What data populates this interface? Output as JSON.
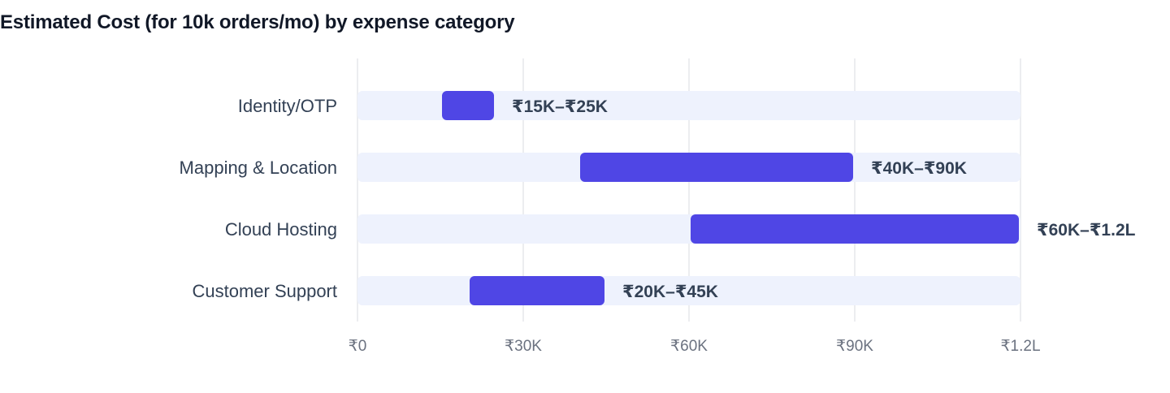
{
  "chart_data": {
    "type": "bar",
    "orientation": "horizontal",
    "subtype": "range",
    "title": "Estimated Cost (for 10k orders/mo) by expense category",
    "xlabel": "",
    "ylabel": "",
    "xlim": [
      0,
      120000
    ],
    "categories": [
      "Identity/OTP",
      "Mapping & Location",
      "Cloud Hosting",
      "Customer Support"
    ],
    "ranges": [
      {
        "low": 15000,
        "high": 25000,
        "label": "₹15K–₹25K"
      },
      {
        "low": 40000,
        "high": 90000,
        "label": "₹40K–₹90K"
      },
      {
        "low": 60000,
        "high": 120000,
        "label": "₹60K–₹1.2L"
      },
      {
        "low": 20000,
        "high": 45000,
        "label": "₹20K–₹45K"
      }
    ],
    "x_ticks": [
      0,
      30000,
      60000,
      90000,
      120000
    ],
    "x_tick_labels": [
      "₹0",
      "₹30K",
      "₹60K",
      "₹90K",
      "₹1.2L"
    ],
    "grid": true,
    "legend": "none",
    "colors": {
      "bar": "#4f46e5",
      "track": "#eef2fd",
      "grid": "#e5e7eb"
    }
  }
}
